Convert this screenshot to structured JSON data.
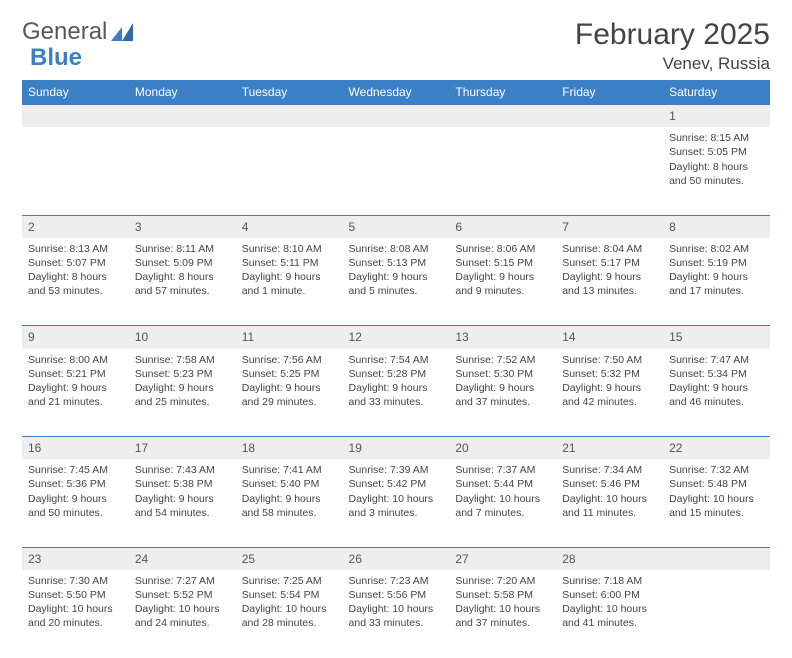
{
  "brand": {
    "name_a": "General",
    "name_b": "Blue"
  },
  "title": "February 2025",
  "location": "Venev, Russia",
  "colors": {
    "accent": "#3b7fc4",
    "row_alt": "#eeeeee",
    "text": "#444444",
    "bg": "#ffffff"
  },
  "weekdays": [
    "Sunday",
    "Monday",
    "Tuesday",
    "Wednesday",
    "Thursday",
    "Friday",
    "Saturday"
  ],
  "weeks": [
    [
      null,
      null,
      null,
      null,
      null,
      null,
      {
        "n": "1",
        "sr": "Sunrise: 8:15 AM",
        "ss": "Sunset: 5:05 PM",
        "d1": "Daylight: 8 hours",
        "d2": "and 50 minutes."
      }
    ],
    [
      {
        "n": "2",
        "sr": "Sunrise: 8:13 AM",
        "ss": "Sunset: 5:07 PM",
        "d1": "Daylight: 8 hours",
        "d2": "and 53 minutes."
      },
      {
        "n": "3",
        "sr": "Sunrise: 8:11 AM",
        "ss": "Sunset: 5:09 PM",
        "d1": "Daylight: 8 hours",
        "d2": "and 57 minutes."
      },
      {
        "n": "4",
        "sr": "Sunrise: 8:10 AM",
        "ss": "Sunset: 5:11 PM",
        "d1": "Daylight: 9 hours",
        "d2": "and 1 minute."
      },
      {
        "n": "5",
        "sr": "Sunrise: 8:08 AM",
        "ss": "Sunset: 5:13 PM",
        "d1": "Daylight: 9 hours",
        "d2": "and 5 minutes."
      },
      {
        "n": "6",
        "sr": "Sunrise: 8:06 AM",
        "ss": "Sunset: 5:15 PM",
        "d1": "Daylight: 9 hours",
        "d2": "and 9 minutes."
      },
      {
        "n": "7",
        "sr": "Sunrise: 8:04 AM",
        "ss": "Sunset: 5:17 PM",
        "d1": "Daylight: 9 hours",
        "d2": "and 13 minutes."
      },
      {
        "n": "8",
        "sr": "Sunrise: 8:02 AM",
        "ss": "Sunset: 5:19 PM",
        "d1": "Daylight: 9 hours",
        "d2": "and 17 minutes."
      }
    ],
    [
      {
        "n": "9",
        "sr": "Sunrise: 8:00 AM",
        "ss": "Sunset: 5:21 PM",
        "d1": "Daylight: 9 hours",
        "d2": "and 21 minutes."
      },
      {
        "n": "10",
        "sr": "Sunrise: 7:58 AM",
        "ss": "Sunset: 5:23 PM",
        "d1": "Daylight: 9 hours",
        "d2": "and 25 minutes."
      },
      {
        "n": "11",
        "sr": "Sunrise: 7:56 AM",
        "ss": "Sunset: 5:25 PM",
        "d1": "Daylight: 9 hours",
        "d2": "and 29 minutes."
      },
      {
        "n": "12",
        "sr": "Sunrise: 7:54 AM",
        "ss": "Sunset: 5:28 PM",
        "d1": "Daylight: 9 hours",
        "d2": "and 33 minutes."
      },
      {
        "n": "13",
        "sr": "Sunrise: 7:52 AM",
        "ss": "Sunset: 5:30 PM",
        "d1": "Daylight: 9 hours",
        "d2": "and 37 minutes."
      },
      {
        "n": "14",
        "sr": "Sunrise: 7:50 AM",
        "ss": "Sunset: 5:32 PM",
        "d1": "Daylight: 9 hours",
        "d2": "and 42 minutes."
      },
      {
        "n": "15",
        "sr": "Sunrise: 7:47 AM",
        "ss": "Sunset: 5:34 PM",
        "d1": "Daylight: 9 hours",
        "d2": "and 46 minutes."
      }
    ],
    [
      {
        "n": "16",
        "sr": "Sunrise: 7:45 AM",
        "ss": "Sunset: 5:36 PM",
        "d1": "Daylight: 9 hours",
        "d2": "and 50 minutes."
      },
      {
        "n": "17",
        "sr": "Sunrise: 7:43 AM",
        "ss": "Sunset: 5:38 PM",
        "d1": "Daylight: 9 hours",
        "d2": "and 54 minutes."
      },
      {
        "n": "18",
        "sr": "Sunrise: 7:41 AM",
        "ss": "Sunset: 5:40 PM",
        "d1": "Daylight: 9 hours",
        "d2": "and 58 minutes."
      },
      {
        "n": "19",
        "sr": "Sunrise: 7:39 AM",
        "ss": "Sunset: 5:42 PM",
        "d1": "Daylight: 10 hours",
        "d2": "and 3 minutes."
      },
      {
        "n": "20",
        "sr": "Sunrise: 7:37 AM",
        "ss": "Sunset: 5:44 PM",
        "d1": "Daylight: 10 hours",
        "d2": "and 7 minutes."
      },
      {
        "n": "21",
        "sr": "Sunrise: 7:34 AM",
        "ss": "Sunset: 5:46 PM",
        "d1": "Daylight: 10 hours",
        "d2": "and 11 minutes."
      },
      {
        "n": "22",
        "sr": "Sunrise: 7:32 AM",
        "ss": "Sunset: 5:48 PM",
        "d1": "Daylight: 10 hours",
        "d2": "and 15 minutes."
      }
    ],
    [
      {
        "n": "23",
        "sr": "Sunrise: 7:30 AM",
        "ss": "Sunset: 5:50 PM",
        "d1": "Daylight: 10 hours",
        "d2": "and 20 minutes."
      },
      {
        "n": "24",
        "sr": "Sunrise: 7:27 AM",
        "ss": "Sunset: 5:52 PM",
        "d1": "Daylight: 10 hours",
        "d2": "and 24 minutes."
      },
      {
        "n": "25",
        "sr": "Sunrise: 7:25 AM",
        "ss": "Sunset: 5:54 PM",
        "d1": "Daylight: 10 hours",
        "d2": "and 28 minutes."
      },
      {
        "n": "26",
        "sr": "Sunrise: 7:23 AM",
        "ss": "Sunset: 5:56 PM",
        "d1": "Daylight: 10 hours",
        "d2": "and 33 minutes."
      },
      {
        "n": "27",
        "sr": "Sunrise: 7:20 AM",
        "ss": "Sunset: 5:58 PM",
        "d1": "Daylight: 10 hours",
        "d2": "and 37 minutes."
      },
      {
        "n": "28",
        "sr": "Sunrise: 7:18 AM",
        "ss": "Sunset: 6:00 PM",
        "d1": "Daylight: 10 hours",
        "d2": "and 41 minutes."
      },
      null
    ]
  ]
}
